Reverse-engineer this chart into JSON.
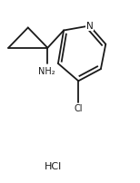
{
  "background_color": "#ffffff",
  "line_color": "#1a1a1a",
  "line_width": 1.3,
  "text_color": "#1a1a1a",
  "font_size_atoms": 7.0,
  "font_size_hcl": 8.0,
  "hcl_text": "HCl",
  "nh2_label": "NH₂",
  "n_label": "N",
  "cl_label": "Cl"
}
